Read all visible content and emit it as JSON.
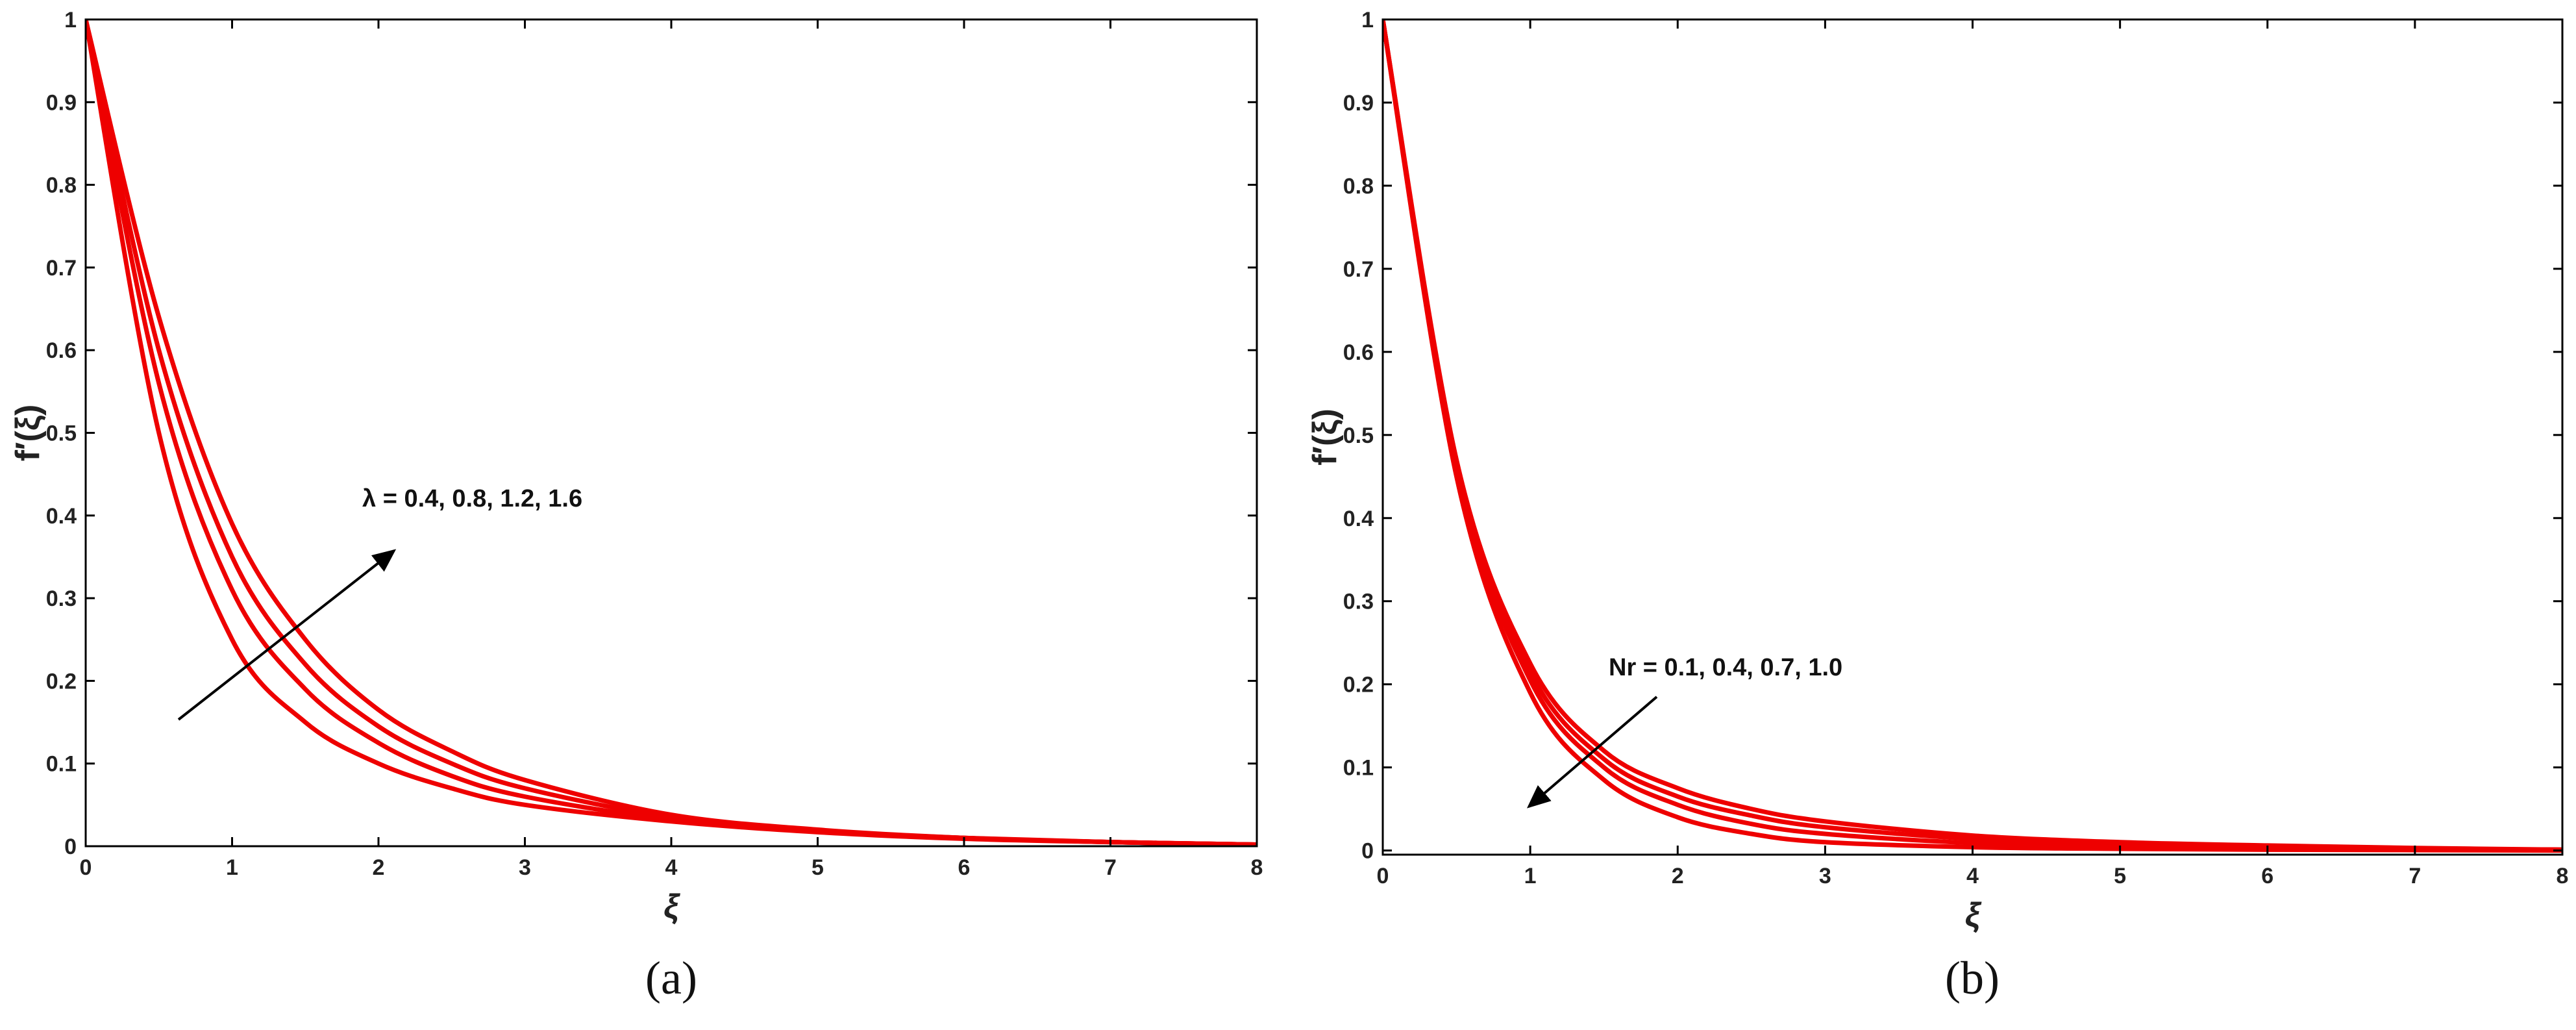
{
  "chart_data": [
    {
      "type": "line",
      "caption": "(a)",
      "x_label": "ξ",
      "y_label": "f′(ξ)",
      "annotation": "λ = 0.4, 0.8, 1.2, 1.6",
      "x": [
        0,
        0.5,
        1,
        1.5,
        2,
        2.5,
        3,
        4,
        5,
        6,
        7,
        8
      ],
      "series": [
        {
          "color": "#ee0000",
          "values": [
            1,
            0.5,
            0.25,
            0.15,
            0.1,
            0.07,
            0.05,
            0.03,
            0.017,
            0.009,
            0.005,
            0.002
          ]
        },
        {
          "color": "#ee0000",
          "values": [
            1,
            0.56,
            0.31,
            0.19,
            0.125,
            0.085,
            0.06,
            0.032,
            0.018,
            0.01,
            0.005,
            0.002
          ]
        },
        {
          "color": "#ee0000",
          "values": [
            1,
            0.6,
            0.35,
            0.22,
            0.145,
            0.1,
            0.07,
            0.035,
            0.019,
            0.01,
            0.005,
            0.002
          ]
        },
        {
          "color": "#ee0000",
          "values": [
            1,
            0.64,
            0.39,
            0.25,
            0.165,
            0.115,
            0.08,
            0.038,
            0.02,
            0.01,
            0.005,
            0.002
          ]
        }
      ],
      "xlim": [
        0,
        8
      ],
      "xticks": [
        0,
        1,
        2,
        3,
        4,
        5,
        6,
        7,
        8
      ],
      "ylim": [
        0,
        1
      ],
      "yticks": [
        0,
        0.1,
        0.2,
        0.3,
        0.4,
        0.5,
        0.6,
        0.7,
        0.8,
        0.9,
        1
      ]
    },
    {
      "type": "line",
      "caption": "(b)",
      "x_label": "ξ",
      "y_label": "f′(ξ)",
      "annotation": "Nr = 0.1, 0.4, 0.7, 1.0",
      "x": [
        0,
        0.5,
        1,
        1.5,
        2,
        2.5,
        3,
        4,
        5,
        6,
        7,
        8
      ],
      "series": [
        {
          "color": "#ee0000",
          "values": [
            1,
            0.45,
            0.19,
            0.085,
            0.04,
            0.02,
            0.01,
            0.004,
            0.002,
            0.001,
            0.0005,
            0
          ]
        },
        {
          "color": "#ee0000",
          "values": [
            1,
            0.46,
            0.205,
            0.1,
            0.055,
            0.032,
            0.02,
            0.009,
            0.005,
            0.003,
            0.0015,
            0.001
          ]
        },
        {
          "color": "#ee0000",
          "values": [
            1,
            0.465,
            0.215,
            0.11,
            0.065,
            0.042,
            0.028,
            0.014,
            0.008,
            0.004,
            0.002,
            0.001
          ]
        },
        {
          "color": "#ee0000",
          "values": [
            1,
            0.47,
            0.225,
            0.12,
            0.075,
            0.05,
            0.035,
            0.018,
            0.01,
            0.006,
            0.003,
            0.001
          ]
        }
      ],
      "xlim": [
        0,
        8
      ],
      "xticks": [
        0,
        1,
        2,
        3,
        4,
        5,
        6,
        7,
        8
      ],
      "ylim": [
        -0.005,
        1
      ],
      "yticks": [
        0,
        0.1,
        0.2,
        0.3,
        0.4,
        0.5,
        0.6,
        0.7,
        0.8,
        0.9,
        1
      ]
    }
  ]
}
